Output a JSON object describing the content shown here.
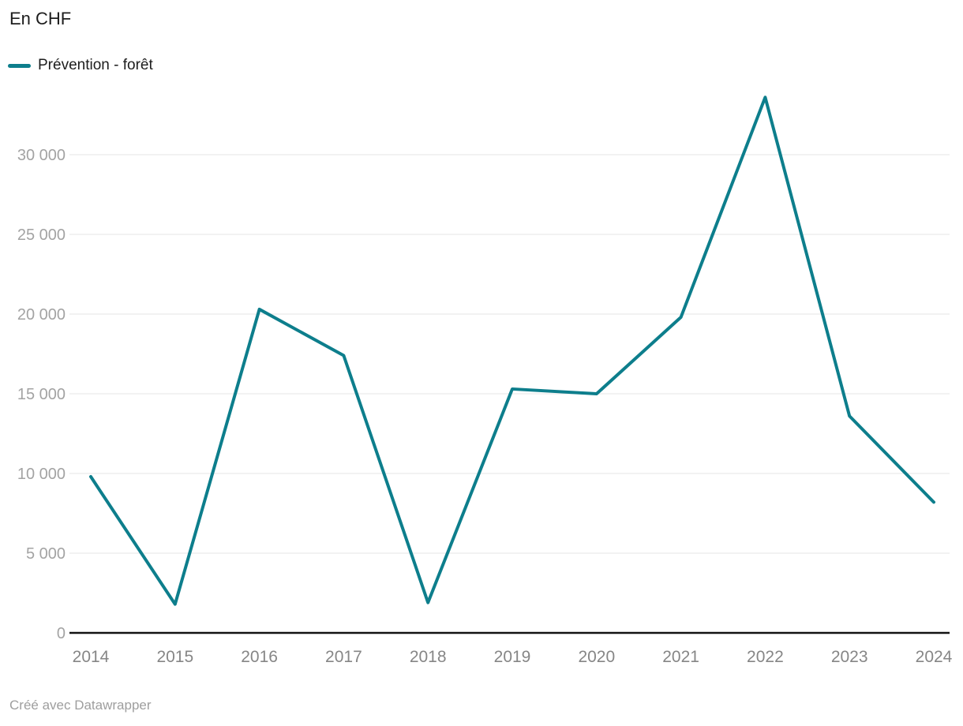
{
  "chart_data": {
    "type": "line",
    "title": "En CHF",
    "x": [
      2014,
      2015,
      2016,
      2017,
      2018,
      2019,
      2020,
      2021,
      2022,
      2023,
      2024
    ],
    "x_tick_labels": [
      "2014",
      "2015",
      "2016",
      "2017",
      "2018",
      "2019",
      "2020",
      "2021",
      "2022",
      "2023",
      "2024"
    ],
    "series": [
      {
        "name": "Prévention - forêt",
        "color": "#0d7e8c",
        "values": [
          9800,
          1800,
          20300,
          17400,
          1900,
          15300,
          15000,
          19800,
          33600,
          13600,
          8200
        ]
      }
    ],
    "xlabel": "",
    "ylabel": "",
    "ylim": [
      0,
      34000
    ],
    "y_ticks": {
      "values": [
        0,
        5000,
        10000,
        15000,
        20000,
        25000,
        30000
      ],
      "labels": [
        "0",
        "5 000",
        "10 000",
        "15 000",
        "20 000",
        "25 000",
        "30 000"
      ]
    },
    "grid": true,
    "legend_position": "top-left"
  },
  "footer": {
    "text": "Créé avec Datawrapper"
  },
  "colors": {
    "line": "#0d7e8c",
    "grid": "#e4e4e4",
    "axis": "#121212",
    "y_tick_label": "#a3a3a3",
    "x_tick_label": "#868686",
    "title_text": "#1d1d1d",
    "footer_text": "#9e9e9e",
    "background": "#ffffff"
  }
}
